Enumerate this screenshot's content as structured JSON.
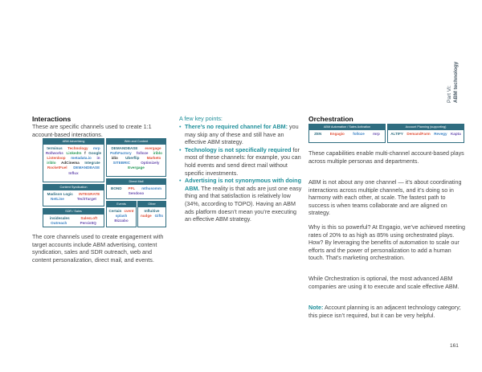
{
  "side_label": {
    "part": "Part VI:",
    "title": "ABM technology"
  },
  "interactions": {
    "heading": "Interactions",
    "intro": "These are specific channels used to create 1:1 account-based interactions.",
    "diagram": {
      "abm_advertising": {
        "title": "ABM Advertising",
        "logos": [
          "terminus",
          "Technology",
          "mrp",
          "Rollworks",
          "LinkedIn",
          "f",
          "Google",
          "Listenloop",
          "metadata.io",
          "in",
          "iriblo",
          "AdCinema",
          "Integrate",
          "RocketFuel",
          "DEMANDBASE",
          "Influx"
        ]
      },
      "web_content": {
        "title": "Web and Content",
        "logos": [
          "DEMANDBASE",
          "evergage",
          "PathFactory",
          "folloze",
          "iriblo",
          "idio",
          "Uberflip",
          "Marketo",
          "SITEBRIC",
          "Optimizely",
          "Evergage"
        ]
      },
      "content_syndication": {
        "title": "Content Syndication",
        "logos": [
          "Madison Logic",
          "INTEGRATE",
          "NetLine",
          "TechTarget"
        ]
      },
      "direct_mail": {
        "title": "Direct Mail",
        "logos": [
          "BOND",
          "PFL",
          "mthusomm",
          "Sendoso"
        ]
      },
      "sdr_sales": {
        "title": "SDR / Sales",
        "logos": [
          "insidesales",
          "SalesLoft",
          "Outreach",
          "PersistIQ"
        ]
      },
      "events": {
        "title": "Events",
        "logos": [
          "Certain",
          "cvent",
          "splash",
          "Bizzabo"
        ]
      },
      "other": {
        "title": "Other",
        "logos": [
          "Influitive",
          "nudge",
          "Gifts"
        ]
      }
    },
    "body": "The core channels used to create engagement with target accounts include ABM advertising, content syndication, sales and SDR outreach, web and content personalization, direct mail, and events."
  },
  "key_points": {
    "heading": "A few key points:",
    "items": [
      {
        "bold": "There’s no required channel for ABM:",
        "text": " you may skip any of these and still have an effective ABM strategy."
      },
      {
        "bold": "Technology is not specifically required",
        "text": " for most of these channels: for example, you can hold events and send direct mail without specific investments."
      },
      {
        "bold": "Advertising is not synonymous with doing ABM.",
        "text": " The reality is that ads are just one easy thing and that satisfaction is relatively low (34%, according to TOPO). Having an ABM ads platform doesn’t mean you’re executing an effective ABM strategy."
      }
    ]
  },
  "orchestration": {
    "heading": "Orchestration",
    "automation": {
      "title": "ABM Automation / Sales Activation",
      "logos": [
        "ZEN",
        "Engagio",
        "folloze",
        "mrp"
      ]
    },
    "planning": {
      "title": "Account Planning (supporting)",
      "logos": [
        "ALTIFY",
        "DemandFarm",
        "Revegy",
        "Kapta"
      ]
    },
    "p1": "These capabilities enable multi-channel account-based plays across multiple personas and departments.",
    "p2": "ABM is not about any one channel — it’s about coordinating interactions across multiple channels, and it’s doing so in harmony with each other, at scale. The fastest path to success is when teams collaborate and are aligned on strategy.",
    "p3": "Why is this so powerful? At Engagio, we’ve achieved meeting rates of 20% to as high as 85% using orchestrated plays. How? By leveraging the benefits of automation to scale our efforts and the power of personalization to add a human touch. That’s marketing orchestration.",
    "p4": "While Orchestration is optional, the most advanced ABM companies are using it to execute and scale effective ABM.",
    "note_label": "Note:",
    "note_text": " Account planning is an adjacent technology category; this piece isn’t required, but it can be very helpful."
  },
  "page_number": "161"
}
